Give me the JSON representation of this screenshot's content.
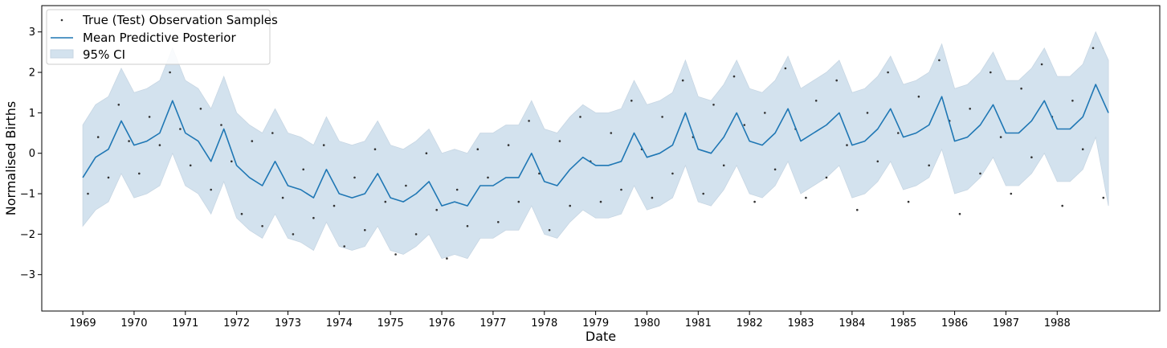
{
  "chart_data": {
    "type": "line",
    "xlabel": "Date",
    "ylabel": "Normalised Births",
    "xlim": [
      1968.2,
      1990.0
    ],
    "ylim": [
      -3.9,
      3.65
    ],
    "x_ticks": [
      "1969",
      "1970",
      "1971",
      "1972",
      "1973",
      "1974",
      "1975",
      "1976",
      "1977",
      "1978",
      "1979",
      "1980",
      "1981",
      "1982",
      "1983",
      "1984",
      "1985",
      "1986",
      "1987",
      "1988"
    ],
    "y_ticks": [
      3,
      2,
      1,
      0,
      -1,
      -2,
      -3
    ],
    "y_tick_labels": [
      "3",
      "2",
      "1",
      "0",
      "−1",
      "−2",
      "−3"
    ],
    "grid": false,
    "legend_placement": "top-left",
    "colors": {
      "mean": "#1f77b4",
      "ci_fill": "#d3e2ee",
      "ci_edge": "#c7d6e3",
      "points": "#333333"
    },
    "series": [
      {
        "name": "Mean Predictive Posterior",
        "kind": "line",
        "x": [
          1969.0,
          1969.25,
          1969.5,
          1969.75,
          1970.0,
          1970.25,
          1970.5,
          1970.75,
          1971.0,
          1971.25,
          1971.5,
          1971.75,
          1972.0,
          1972.25,
          1972.5,
          1972.75,
          1973.0,
          1973.25,
          1973.5,
          1973.75,
          1974.0,
          1974.25,
          1974.5,
          1974.75,
          1975.0,
          1975.25,
          1975.5,
          1975.75,
          1976.0,
          1976.25,
          1976.5,
          1976.75,
          1977.0,
          1977.25,
          1977.5,
          1977.75,
          1978.0,
          1978.25,
          1978.5,
          1978.75,
          1979.0,
          1979.25,
          1979.5,
          1979.75,
          1980.0,
          1980.25,
          1980.5,
          1980.75,
          1981.0,
          1981.25,
          1981.5,
          1981.75,
          1982.0,
          1982.25,
          1982.5,
          1982.75,
          1983.0,
          1983.25,
          1983.5,
          1983.75,
          1984.0,
          1984.25,
          1984.5,
          1984.75,
          1985.0,
          1985.25,
          1985.5,
          1985.75,
          1986.0,
          1986.25,
          1986.5,
          1986.75,
          1987.0,
          1987.25,
          1987.5,
          1987.75,
          1988.0,
          1988.25,
          1988.5,
          1988.75,
          1989.0
        ],
        "y": [
          -0.6,
          -0.1,
          0.1,
          0.8,
          0.2,
          0.3,
          0.5,
          1.3,
          0.5,
          0.3,
          -0.2,
          0.6,
          -0.3,
          -0.6,
          -0.8,
          -0.2,
          -0.8,
          -0.9,
          -1.1,
          -0.4,
          -1.0,
          -1.1,
          -1.0,
          -0.5,
          -1.1,
          -1.2,
          -1.0,
          -0.7,
          -1.3,
          -1.2,
          -1.3,
          -0.8,
          -0.8,
          -0.6,
          -0.6,
          0.0,
          -0.7,
          -0.8,
          -0.4,
          -0.1,
          -0.3,
          -0.3,
          -0.2,
          0.5,
          -0.1,
          0.0,
          0.2,
          1.0,
          0.1,
          0.0,
          0.4,
          1.0,
          0.3,
          0.2,
          0.5,
          1.1,
          0.3,
          0.5,
          0.7,
          1.0,
          0.2,
          0.3,
          0.6,
          1.1,
          0.4,
          0.5,
          0.7,
          1.4,
          0.3,
          0.4,
          0.7,
          1.2,
          0.5,
          0.5,
          0.8,
          1.3,
          0.6,
          0.6,
          0.9,
          1.7,
          1.0
        ]
      },
      {
        "name": "95% CI",
        "kind": "band",
        "x": [
          1969.0,
          1969.25,
          1969.5,
          1969.75,
          1970.0,
          1970.25,
          1970.5,
          1970.75,
          1971.0,
          1971.25,
          1971.5,
          1971.75,
          1972.0,
          1972.25,
          1972.5,
          1972.75,
          1973.0,
          1973.25,
          1973.5,
          1973.75,
          1974.0,
          1974.25,
          1974.5,
          1974.75,
          1975.0,
          1975.25,
          1975.5,
          1975.75,
          1976.0,
          1976.25,
          1976.5,
          1976.75,
          1977.0,
          1977.25,
          1977.5,
          1977.75,
          1978.0,
          1978.25,
          1978.5,
          1978.75,
          1979.0,
          1979.25,
          1979.5,
          1979.75,
          1980.0,
          1980.25,
          1980.5,
          1980.75,
          1981.0,
          1981.25,
          1981.5,
          1981.75,
          1982.0,
          1982.25,
          1982.5,
          1982.75,
          1983.0,
          1983.25,
          1983.5,
          1983.75,
          1984.0,
          1984.25,
          1984.5,
          1984.75,
          1985.0,
          1985.25,
          1985.5,
          1985.75,
          1986.0,
          1986.25,
          1986.5,
          1986.75,
          1987.0,
          1987.25,
          1987.5,
          1987.75,
          1988.0,
          1988.25,
          1988.5,
          1988.75,
          1989.0
        ],
        "lower": [
          -1.8,
          -1.4,
          -1.2,
          -0.5,
          -1.1,
          -1.0,
          -0.8,
          0.0,
          -0.8,
          -1.0,
          -1.5,
          -0.7,
          -1.6,
          -1.9,
          -2.1,
          -1.5,
          -2.1,
          -2.2,
          -2.4,
          -1.7,
          -2.3,
          -2.4,
          -2.3,
          -1.8,
          -2.4,
          -2.5,
          -2.3,
          -2.0,
          -2.6,
          -2.5,
          -2.6,
          -2.1,
          -2.1,
          -1.9,
          -1.9,
          -1.3,
          -2.0,
          -2.1,
          -1.7,
          -1.4,
          -1.6,
          -1.6,
          -1.5,
          -0.8,
          -1.4,
          -1.3,
          -1.1,
          -0.3,
          -1.2,
          -1.3,
          -0.9,
          -0.3,
          -1.0,
          -1.1,
          -0.8,
          -0.2,
          -1.0,
          -0.8,
          -0.6,
          -0.3,
          -1.1,
          -1.0,
          -0.7,
          -0.2,
          -0.9,
          -0.8,
          -0.6,
          0.1,
          -1.0,
          -0.9,
          -0.6,
          -0.1,
          -0.8,
          -0.8,
          -0.5,
          0.0,
          -0.7,
          -0.7,
          -0.4,
          0.4,
          -1.3
        ],
        "upper": [
          0.7,
          1.2,
          1.4,
          2.1,
          1.5,
          1.6,
          1.8,
          2.6,
          1.8,
          1.6,
          1.1,
          1.9,
          1.0,
          0.7,
          0.5,
          1.1,
          0.5,
          0.4,
          0.2,
          0.9,
          0.3,
          0.2,
          0.3,
          0.8,
          0.2,
          0.1,
          0.3,
          0.6,
          0.0,
          0.1,
          0.0,
          0.5,
          0.5,
          0.7,
          0.7,
          1.3,
          0.6,
          0.5,
          0.9,
          1.2,
          1.0,
          1.0,
          1.1,
          1.8,
          1.2,
          1.3,
          1.5,
          2.3,
          1.4,
          1.3,
          1.7,
          2.3,
          1.6,
          1.5,
          1.8,
          2.4,
          1.6,
          1.8,
          2.0,
          2.3,
          1.5,
          1.6,
          1.9,
          2.4,
          1.7,
          1.8,
          2.0,
          2.7,
          1.6,
          1.7,
          2.0,
          2.5,
          1.8,
          1.8,
          2.1,
          2.6,
          1.9,
          1.9,
          2.2,
          3.0,
          2.3
        ]
      },
      {
        "name": "True (Test) Observation Samples",
        "kind": "scatter",
        "x": [
          1969.1,
          1969.3,
          1969.5,
          1969.7,
          1969.9,
          1970.1,
          1970.3,
          1970.5,
          1970.7,
          1970.9,
          1971.1,
          1971.3,
          1971.5,
          1971.7,
          1971.9,
          1972.1,
          1972.3,
          1972.5,
          1972.7,
          1972.9,
          1973.1,
          1973.3,
          1973.5,
          1973.7,
          1973.9,
          1974.1,
          1974.3,
          1974.5,
          1974.7,
          1974.9,
          1975.1,
          1975.3,
          1975.5,
          1975.7,
          1975.9,
          1976.1,
          1976.3,
          1976.5,
          1976.7,
          1976.9,
          1977.1,
          1977.3,
          1977.5,
          1977.7,
          1977.9,
          1978.1,
          1978.3,
          1978.5,
          1978.7,
          1978.9,
          1979.1,
          1979.3,
          1979.5,
          1979.7,
          1979.9,
          1980.1,
          1980.3,
          1980.5,
          1980.7,
          1980.9,
          1981.1,
          1981.3,
          1981.5,
          1981.7,
          1981.9,
          1982.1,
          1982.3,
          1982.5,
          1982.7,
          1982.9,
          1983.1,
          1983.3,
          1983.5,
          1983.7,
          1983.9,
          1984.1,
          1984.3,
          1984.5,
          1984.7,
          1984.9,
          1985.1,
          1985.3,
          1985.5,
          1985.7,
          1985.9,
          1986.1,
          1986.3,
          1986.5,
          1986.7,
          1986.9,
          1987.1,
          1987.3,
          1987.5,
          1987.7,
          1987.9,
          1988.1,
          1988.3,
          1988.5,
          1988.7,
          1988.9
        ],
        "y": [
          -1.0,
          0.4,
          -0.6,
          1.2,
          0.3,
          -0.5,
          0.9,
          0.2,
          2.0,
          0.6,
          -0.3,
          1.1,
          -0.9,
          0.7,
          -0.2,
          -1.5,
          0.3,
          -1.8,
          0.5,
          -1.1,
          -2.0,
          -0.4,
          -1.6,
          0.2,
          -1.3,
          -2.3,
          -0.6,
          -1.9,
          0.1,
          -1.2,
          -2.5,
          -0.8,
          -2.0,
          0.0,
          -1.4,
          -2.6,
          -0.9,
          -1.8,
          0.1,
          -0.6,
          -1.7,
          0.2,
          -1.2,
          0.8,
          -0.5,
          -1.9,
          0.3,
          -1.3,
          0.9,
          -0.2,
          -1.2,
          0.5,
          -0.9,
          1.3,
          0.1,
          -1.1,
          0.9,
          -0.5,
          1.8,
          0.4,
          -1.0,
          1.2,
          -0.3,
          1.9,
          0.7,
          -1.2,
          1.0,
          -0.4,
          2.1,
          0.6,
          -1.1,
          1.3,
          -0.6,
          1.8,
          0.2,
          -1.4,
          1.0,
          -0.2,
          2.0,
          0.5,
          -1.2,
          1.4,
          -0.3,
          2.3,
          0.8,
          -1.5,
          1.1,
          -0.5,
          2.0,
          0.4,
          -1.0,
          1.6,
          -0.1,
          2.2,
          0.9,
          -1.3,
          1.3,
          0.1,
          2.6,
          -1.1
        ]
      }
    ],
    "legend": [
      "True (Test) Observation Samples",
      "Mean Predictive Posterior",
      "95% CI"
    ]
  }
}
